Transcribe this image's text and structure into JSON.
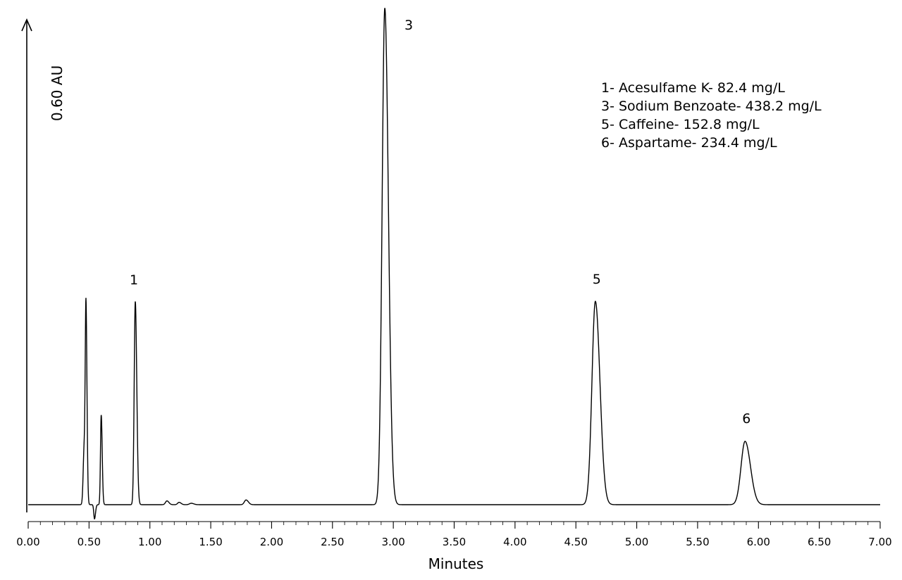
{
  "chart_data": {
    "type": "line",
    "title": "",
    "xlabel": "Minutes",
    "ylabel": "0.60 AU",
    "xlim": [
      0,
      7
    ],
    "x_ticks": [
      "0.00",
      "0.50",
      "1.00",
      "1.50",
      "2.00",
      "2.50",
      "3.00",
      "3.50",
      "4.00",
      "4.50",
      "5.00",
      "5.50",
      "6.00",
      "6.50",
      "7.00"
    ],
    "x_tick_values": [
      0,
      0.5,
      1,
      1.5,
      2,
      2.5,
      3,
      3.5,
      4,
      4.5,
      5,
      5.5,
      6,
      6.5,
      7
    ],
    "grid": false,
    "legend_position": "top-right",
    "legend": [
      "1- Acesulfame K- 82.4 mg/L",
      "3- Sodium Benzoate- 438.2 mg/L",
      "5- Caffeine- 152.8 mg/L",
      "6- Aspartame- 234.4 mg/L"
    ],
    "peak_labels": [
      {
        "label": "1",
        "time": 0.88
      },
      {
        "label": "3",
        "time": 2.93
      },
      {
        "label": "5",
        "time": 4.66
      },
      {
        "label": "6",
        "time": 5.89
      }
    ],
    "peaks": [
      {
        "time": 0.46,
        "height": 0.12,
        "width": 0.008
      },
      {
        "time": 0.475,
        "height": 0.39,
        "width": 0.006
      },
      {
        "time": 0.545,
        "height": -0.03,
        "width": 0.006
      },
      {
        "time": 0.6,
        "height": 0.19,
        "width": 0.006
      },
      {
        "time": 0.88,
        "height": 0.43,
        "width": 0.009
      },
      {
        "time": 1.14,
        "height": 0.008,
        "width": 0.012
      },
      {
        "time": 1.24,
        "height": 0.005,
        "width": 0.012
      },
      {
        "time": 1.34,
        "height": 0.003,
        "width": 0.015
      },
      {
        "time": 1.79,
        "height": 0.01,
        "width": 0.014
      },
      {
        "time": 2.93,
        "height": 1.05,
        "width": 0.022
      },
      {
        "time": 4.66,
        "height": 0.43,
        "width": 0.028
      },
      {
        "time": 5.89,
        "height": 0.134,
        "width": 0.033
      }
    ]
  }
}
